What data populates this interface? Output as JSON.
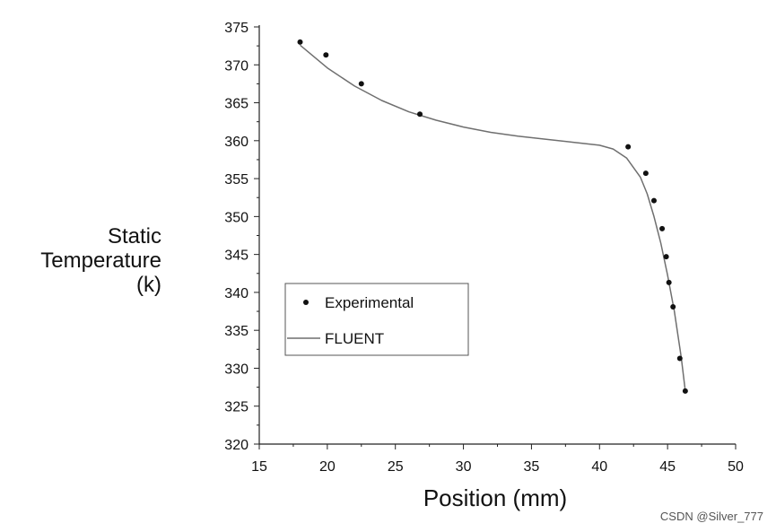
{
  "chart_data": {
    "type": "scatter",
    "xlabel": "Position (mm)",
    "ylabel_lines": [
      "Static",
      "Temperature",
      "(k)"
    ],
    "xlim": [
      15,
      50
    ],
    "ylim": [
      320,
      375
    ],
    "x_ticks": [
      "15",
      "20",
      "25",
      "30",
      "35",
      "40",
      "45",
      "50"
    ],
    "y_ticks": [
      "320",
      "325",
      "330",
      "335",
      "340",
      "345",
      "350",
      "355",
      "360",
      "365",
      "370",
      "375"
    ],
    "grid": false,
    "legend_position": "lower-left",
    "series": [
      {
        "name": "Experimental",
        "kind": "scatter",
        "x": [
          18.0,
          19.9,
          22.5,
          26.8,
          42.1,
          43.4,
          44.0,
          44.6,
          44.9,
          45.1,
          45.4,
          45.9,
          46.3
        ],
        "y": [
          373.0,
          371.3,
          367.5,
          363.5,
          359.2,
          355.7,
          352.1,
          348.4,
          344.7,
          341.3,
          338.1,
          331.3,
          327.0
        ]
      },
      {
        "name": "FLUENT",
        "kind": "line",
        "x": [
          18.0,
          20.0,
          22.0,
          24.0,
          26.0,
          28.0,
          30.0,
          32.0,
          34.0,
          36.0,
          38.0,
          40.0,
          41.0,
          42.0,
          43.0,
          43.5,
          44.0,
          44.5,
          45.0,
          45.5,
          46.0,
          46.3
        ],
        "y": [
          372.6,
          369.6,
          367.2,
          365.3,
          363.8,
          362.7,
          361.8,
          361.1,
          360.6,
          360.2,
          359.8,
          359.4,
          358.9,
          357.7,
          355.2,
          353.0,
          350.0,
          346.5,
          342.3,
          337.5,
          331.5,
          327.0
        ]
      }
    ],
    "colors": {
      "marker": "#111111",
      "line": "#6f6f6f",
      "axis": "#222222"
    }
  },
  "watermark": "CSDN @Silver_777"
}
